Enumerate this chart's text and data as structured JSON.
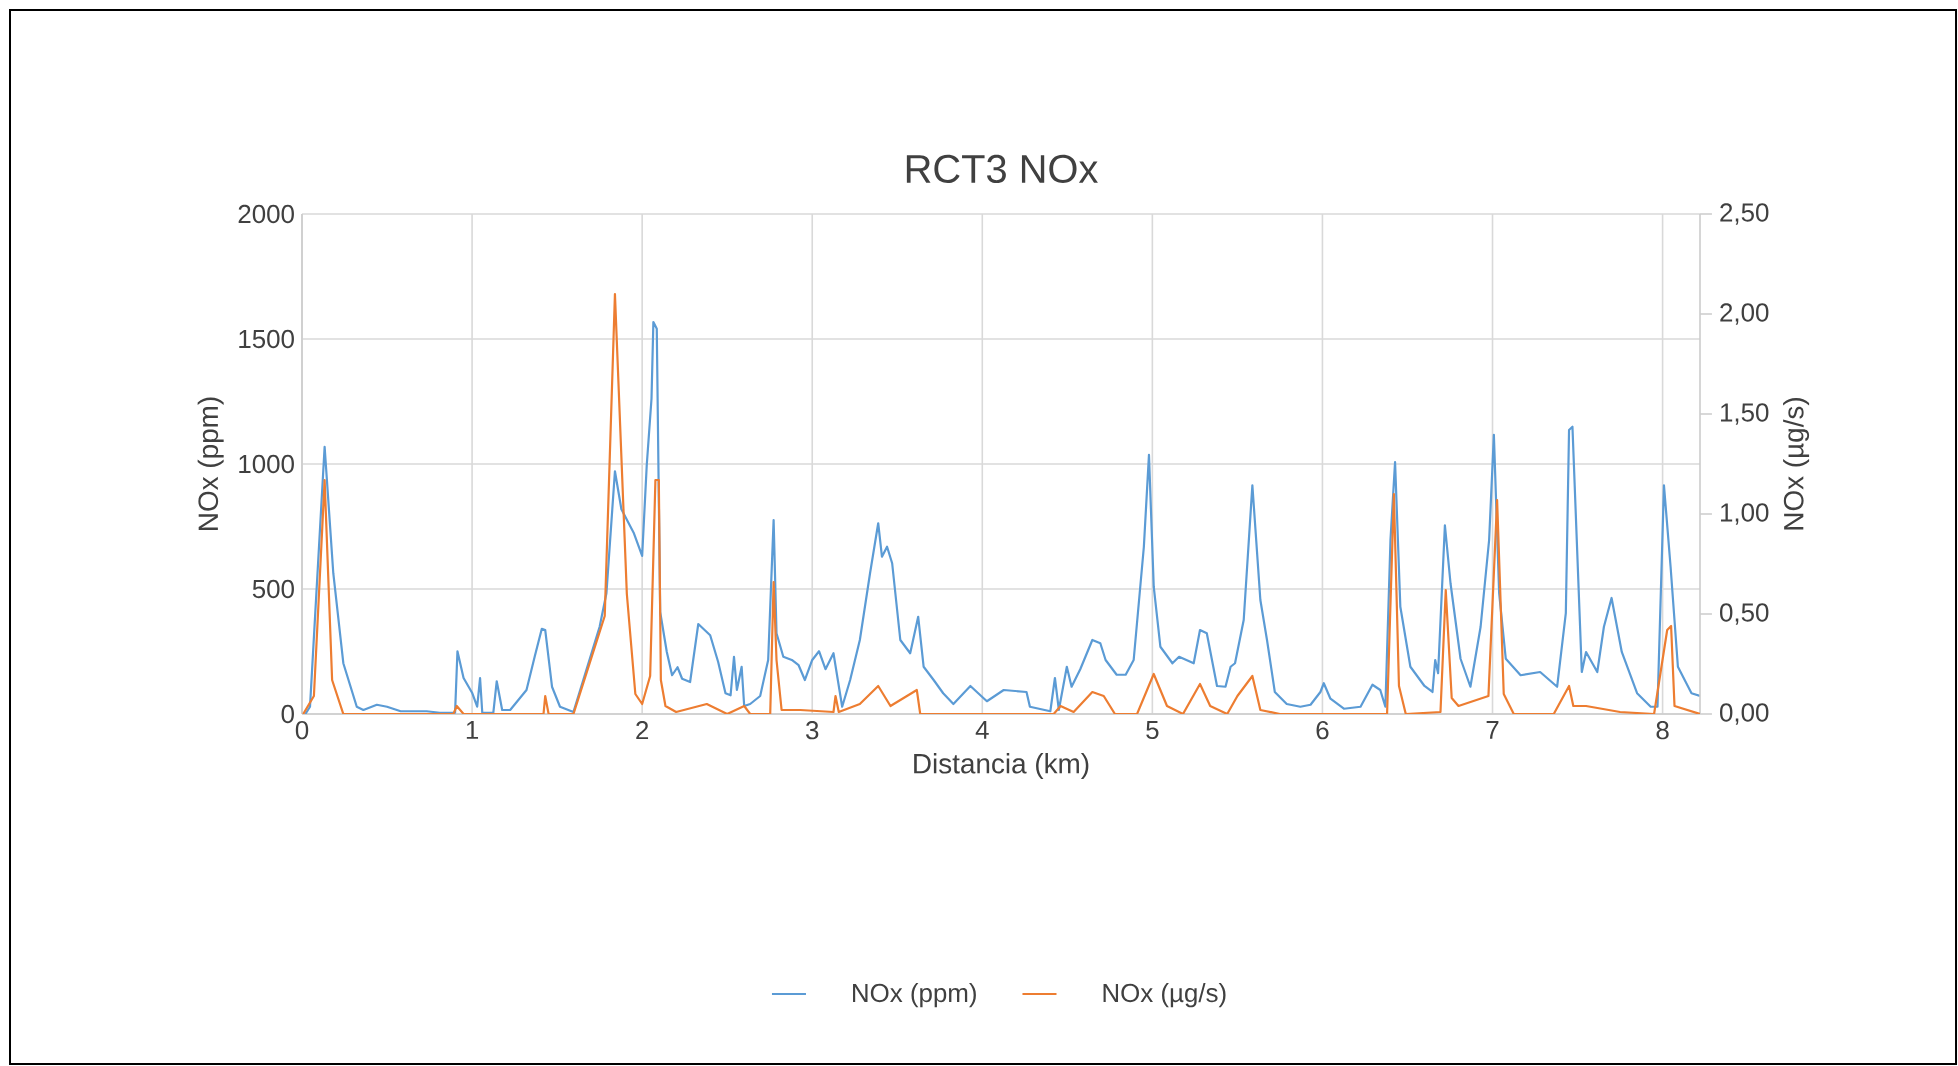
{
  "chart_data": {
    "type": "line",
    "title": "RCT3 NOx",
    "xlabel": "Distancia (km)",
    "ylabel": "NOx (ppm)",
    "y2label": "NOx (µg/s)",
    "xlim": [
      0,
      8.22
    ],
    "xticks": [
      0,
      1,
      2,
      3,
      4,
      5,
      6,
      7,
      8
    ],
    "ylim": [
      0,
      2000
    ],
    "yticks": [
      0,
      500,
      1000,
      1500,
      2000
    ],
    "y2lim": [
      0,
      2.5
    ],
    "y2ticks": [
      {
        "value": 0,
        "label": "0,00"
      },
      {
        "value": 0.5,
        "label": "0,50"
      },
      {
        "value": 1,
        "label": "1,00"
      },
      {
        "value": 1.5,
        "label": "1,50"
      },
      {
        "value": 2,
        "label": "2,00"
      },
      {
        "value": 2.5,
        "label": "2,50"
      }
    ],
    "grid": true,
    "legend": "bottom",
    "series": [
      {
        "name": "NOx (ppm)",
        "color": "#5b9bd5",
        "x": [
          0.02,
          0.047,
          0.133,
          0.184,
          0.243,
          0.322,
          0.361,
          0.44,
          0.5,
          0.58,
          0.733,
          0.81,
          0.9,
          0.914,
          0.95,
          1.0,
          1.03,
          1.047,
          1.06,
          1.125,
          1.145,
          1.177,
          1.224,
          1.32,
          1.368,
          1.41,
          1.43,
          1.47,
          1.517,
          1.596,
          1.75,
          1.79,
          1.84,
          1.878,
          1.95,
          2.0,
          2.027,
          2.055,
          2.066,
          2.086,
          2.106,
          2.145,
          2.176,
          2.208,
          2.235,
          2.282,
          2.33,
          2.4,
          2.447,
          2.49,
          2.52,
          2.54,
          2.557,
          2.585,
          2.6,
          2.635,
          2.694,
          2.741,
          2.773,
          2.79,
          2.83,
          2.88,
          2.92,
          2.957,
          3.0,
          3.04,
          3.078,
          3.125,
          3.176,
          3.223,
          3.28,
          3.34,
          3.388,
          3.41,
          3.44,
          3.47,
          3.518,
          3.576,
          3.623,
          3.655,
          3.714,
          3.77,
          3.83,
          3.93,
          4.027,
          4.126,
          4.26,
          4.28,
          4.4,
          4.427,
          4.45,
          4.497,
          4.525,
          4.576,
          4.647,
          4.694,
          4.725,
          4.79,
          4.843,
          4.89,
          4.95,
          4.98,
          5.008,
          5.047,
          5.118,
          5.157,
          5.243,
          5.28,
          5.32,
          5.38,
          5.43,
          5.46,
          5.486,
          5.537,
          5.588,
          5.635,
          5.674,
          5.72,
          5.79,
          5.87,
          5.93,
          5.988,
          6.008,
          6.047,
          6.126,
          6.224,
          6.294,
          6.34,
          6.37,
          6.4,
          6.427,
          6.458,
          6.517,
          6.6,
          6.647,
          6.663,
          6.68,
          6.72,
          6.753,
          6.812,
          6.87,
          6.93,
          6.98,
          7.008,
          7.039,
          7.078,
          7.165,
          7.28,
          7.38,
          7.431,
          7.45,
          7.47,
          7.525,
          7.55,
          7.616,
          7.655,
          7.7,
          7.76,
          7.85,
          7.93,
          7.97,
          8.008,
          8.047,
          8.09,
          8.17,
          8.22
        ],
        "values": [
          0,
          29,
          1069,
          563,
          203,
          29,
          16,
          37,
          29,
          11,
          11,
          5,
          5,
          251,
          144,
          85,
          29,
          144,
          5,
          5,
          131,
          16,
          16,
          96,
          229,
          341,
          336,
          109,
          29,
          8,
          349,
          483,
          971,
          819,
          725,
          632,
          995,
          1261,
          1568,
          1541,
          408,
          248,
          155,
          187,
          141,
          128,
          360,
          315,
          208,
          83,
          75,
          229,
          96,
          189,
          32,
          40,
          72,
          216,
          776,
          323,
          229,
          216,
          195,
          136,
          216,
          251,
          179,
          243,
          29,
          136,
          296,
          563,
          763,
          629,
          669,
          603,
          296,
          243,
          389,
          189,
          136,
          83,
          40,
          112,
          51,
          96,
          88,
          29,
          11,
          144,
          16,
          189,
          109,
          179,
          296,
          283,
          216,
          157,
          157,
          216,
          669,
          1037,
          509,
          269,
          203,
          229,
          203,
          336,
          323,
          112,
          109,
          189,
          203,
          376,
          915,
          456,
          296,
          88,
          40,
          29,
          37,
          88,
          123,
          61,
          21,
          29,
          117,
          96,
          29,
          696,
          1008,
          429,
          189,
          112,
          88,
          216,
          163,
          755,
          523,
          221,
          109,
          349,
          696,
          1117,
          483,
          221,
          155,
          168,
          109,
          403,
          1136,
          1149,
          168,
          248,
          168,
          349,
          464,
          248,
          83,
          29,
          29,
          915,
          589,
          189,
          83,
          72
        ]
      },
      {
        "name": "NOx (µg/s)",
        "color": "#ed7d31",
        "axis": "y2",
        "x": [
          0.007,
          0.07,
          0.133,
          0.177,
          0.243,
          0.89,
          0.91,
          0.95,
          1.42,
          1.43,
          1.45,
          1.596,
          1.78,
          1.84,
          1.91,
          1.96,
          2.0,
          2.047,
          2.078,
          2.098,
          2.11,
          2.137,
          2.2,
          2.38,
          2.5,
          2.6,
          2.635,
          2.753,
          2.773,
          2.79,
          2.82,
          2.93,
          3.125,
          3.137,
          3.156,
          3.28,
          3.388,
          3.46,
          3.615,
          3.635,
          3.91,
          4.42,
          4.46,
          4.537,
          4.647,
          4.714,
          4.78,
          4.91,
          5.008,
          5.086,
          5.18,
          5.28,
          5.34,
          5.44,
          5.5,
          5.588,
          5.635,
          5.75,
          6.38,
          6.42,
          6.45,
          6.49,
          6.694,
          6.725,
          6.76,
          6.8,
          6.976,
          7.027,
          7.066,
          7.125,
          7.36,
          7.45,
          7.475,
          7.55,
          7.75,
          7.95,
          8.027,
          8.05,
          8.07,
          8.22
        ],
        "values": [
          0,
          0.09,
          1.17,
          0.17,
          0,
          0,
          0.04,
          0,
          0,
          0.09,
          0,
          0,
          0.49,
          2.1,
          0.6,
          0.1,
          0.05,
          0.19,
          1.17,
          1.17,
          0.17,
          0.04,
          0.01,
          0.05,
          0,
          0.04,
          0,
          0,
          0.66,
          0.27,
          0.02,
          0.02,
          0.01,
          0.09,
          0.01,
          0.05,
          0.14,
          0.04,
          0.12,
          0,
          0,
          0,
          0.04,
          0.01,
          0.11,
          0.09,
          0,
          0,
          0.2,
          0.04,
          0,
          0.15,
          0.04,
          0,
          0.09,
          0.19,
          0.02,
          0,
          0,
          1.1,
          0.14,
          0,
          0.01,
          0.62,
          0.08,
          0.04,
          0.09,
          1.07,
          0.1,
          0,
          0,
          0.14,
          0.04,
          0.04,
          0.01,
          0,
          0.42,
          0.44,
          0.04,
          0
        ]
      }
    ]
  }
}
